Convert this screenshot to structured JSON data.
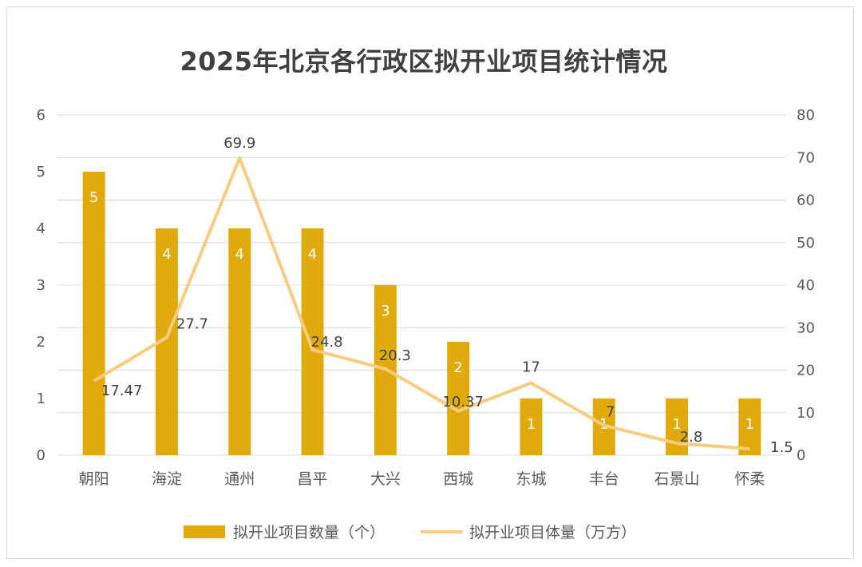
{
  "chart_data": {
    "type": "bar",
    "title": "2025年北京各行政区拟开业项目统计情况",
    "categories": [
      "朝阳",
      "海淀",
      "通州",
      "昌平",
      "大兴",
      "西城",
      "东城",
      "丰台",
      "石景山",
      "怀柔"
    ],
    "series": [
      {
        "name": "拟开业项目数量（个）",
        "type": "bar",
        "axis": "left",
        "values": [
          5,
          4,
          4,
          4,
          3,
          2,
          1,
          1,
          1,
          1
        ],
        "labels": [
          "5",
          "4",
          "4",
          "4",
          "3",
          "2",
          "1",
          "1",
          "1",
          "1"
        ]
      },
      {
        "name": "拟开业项目体量（万方）",
        "type": "line",
        "axis": "right",
        "values": [
          17.47,
          27.7,
          69.9,
          24.8,
          20.3,
          10.37,
          17,
          7,
          2.8,
          1.5
        ],
        "labels": [
          "17.47",
          "27.7",
          "69.9",
          "24.8",
          "20.3",
          "10.37",
          "17",
          "7",
          "2.8",
          "1.5"
        ]
      }
    ],
    "y_left": {
      "min": 0,
      "max": 6,
      "ticks": [
        "0",
        "1",
        "2",
        "3",
        "4",
        "5",
        "6"
      ]
    },
    "y_right": {
      "min": 0,
      "max": 80,
      "ticks": [
        "0",
        "10",
        "20",
        "30",
        "40",
        "50",
        "60",
        "70",
        "80"
      ]
    },
    "grid": true,
    "legend": "bottom",
    "colors": {
      "bar": "#e1aa0c",
      "line": "#f7cb80",
      "grid": "#d9d9d9",
      "text": "#595959"
    }
  }
}
